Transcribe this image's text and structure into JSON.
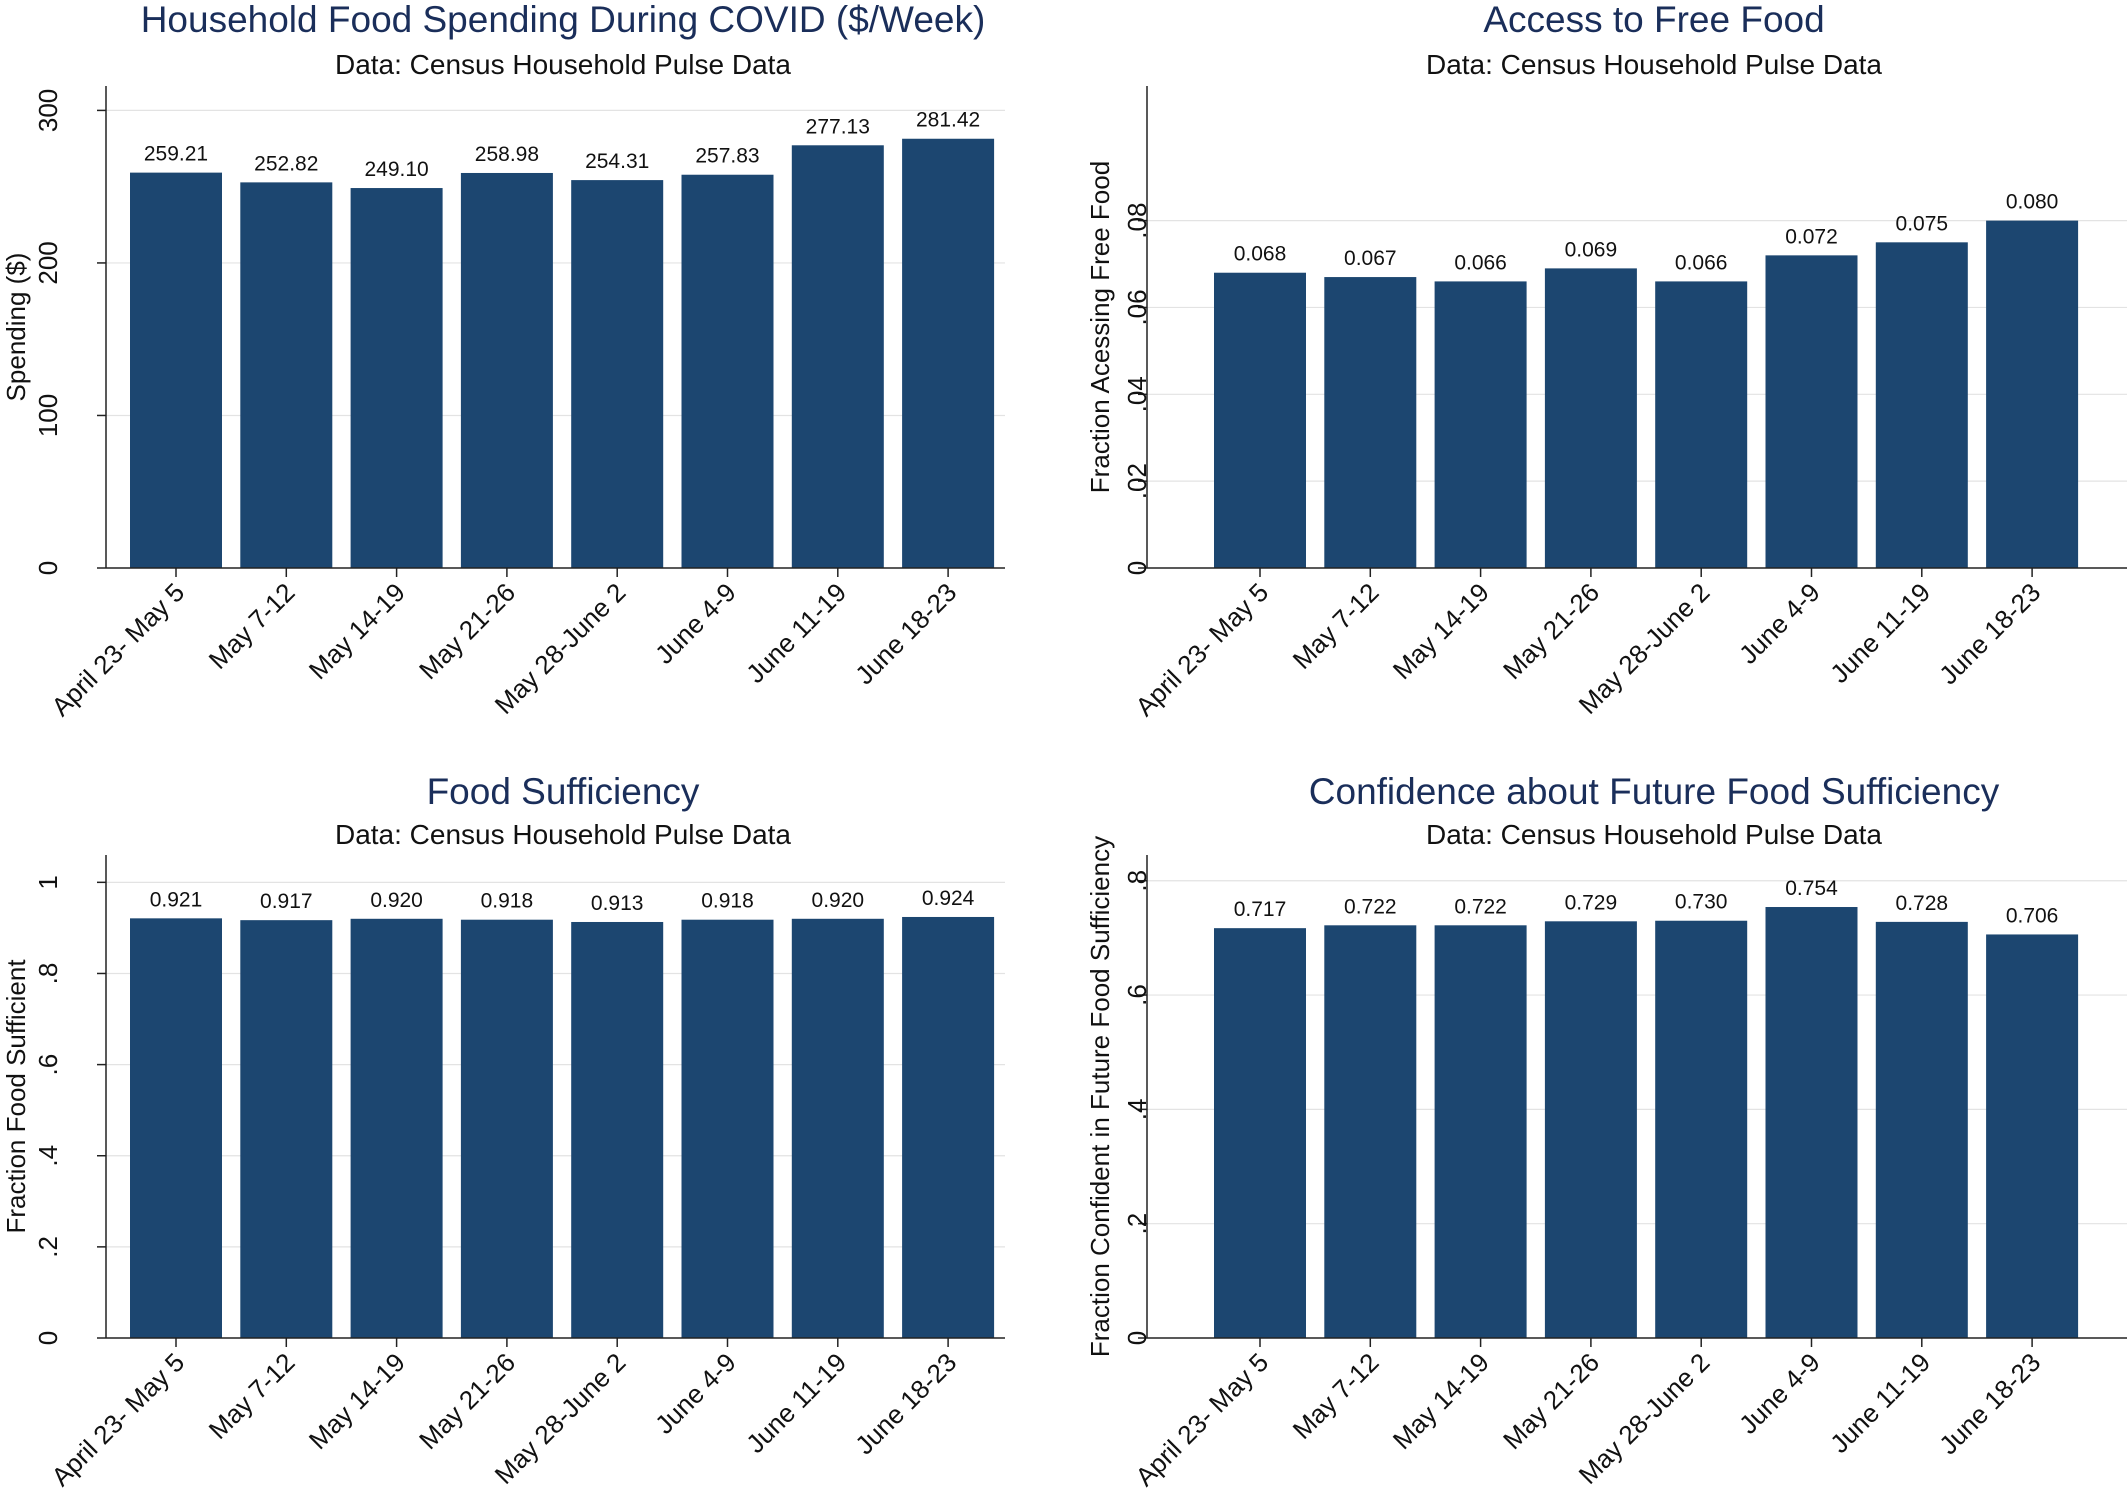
{
  "chart_data": [
    {
      "type": "bar",
      "title": "Household Food Spending During COVID ($/Week)",
      "subtitle": "Data: Census Household Pulse Data",
      "xlabel": "",
      "ylabel": "Spending ($)",
      "categories": [
        "April 23- May 5",
        "May 7-12",
        "May 14-19",
        "May 21-26",
        "May 28-June 2",
        "June 4-9",
        "June 11-19",
        "June 18-23"
      ],
      "values": [
        259.21,
        252.82,
        249.1,
        258.98,
        254.31,
        257.83,
        277.13,
        281.42
      ],
      "data_labels": [
        "259.21",
        "252.82",
        "249.10",
        "258.98",
        "254.31",
        "257.83",
        "277.13",
        "281.42"
      ],
      "yticks": [
        0,
        100,
        200,
        300
      ],
      "ytick_labels": [
        "0",
        "100",
        "200",
        "300"
      ],
      "ylim": [
        0,
        316
      ],
      "grid": true,
      "bar_color": "#1c4670"
    },
    {
      "type": "bar",
      "title": "Access to Free Food",
      "subtitle": "Data: Census Household Pulse Data",
      "xlabel": "",
      "ylabel": "Fraction Acessing Free Food",
      "categories": [
        "April 23- May 5",
        "May 7-12",
        "May 14-19",
        "May 21-26",
        "May 28-June 2",
        "June 4-9",
        "June 11-19",
        "June 18-23"
      ],
      "values": [
        0.068,
        0.067,
        0.066,
        0.069,
        0.066,
        0.072,
        0.075,
        0.08
      ],
      "data_labels": [
        "0.068",
        "0.067",
        "0.066",
        "0.069",
        "0.066",
        "0.072",
        "0.075",
        "0.080"
      ],
      "yticks": [
        0,
        0.02,
        0.04,
        0.06,
        0.08
      ],
      "ytick_labels": [
        "0",
        ".02",
        ".04",
        ".06",
        ".08"
      ],
      "ylim": [
        0,
        0.111
      ],
      "grid": true,
      "bar_color": "#1c4670"
    },
    {
      "type": "bar",
      "title": "Food Sufficiency",
      "subtitle": "Data: Census Household Pulse Data",
      "xlabel": "",
      "ylabel": "Fraction Food Sufficient",
      "categories": [
        "April 23- May 5",
        "May 7-12",
        "May 14-19",
        "May 21-26",
        "May 28-June 2",
        "June 4-9",
        "June 11-19",
        "June 18-23"
      ],
      "values": [
        0.921,
        0.917,
        0.92,
        0.918,
        0.913,
        0.918,
        0.92,
        0.924
      ],
      "data_labels": [
        "0.921",
        "0.917",
        "0.920",
        "0.918",
        "0.913",
        "0.918",
        "0.920",
        "0.924"
      ],
      "yticks": [
        0,
        0.2,
        0.4,
        0.6,
        0.8,
        1
      ],
      "ytick_labels": [
        "0",
        ".2",
        ".4",
        ".6",
        ".8",
        "1"
      ],
      "ylim": [
        0,
        1.06
      ],
      "grid": true,
      "bar_color": "#1c4670"
    },
    {
      "type": "bar",
      "title": "Confidence about Future Food Sufficiency",
      "subtitle": "Data: Census Household Pulse Data",
      "xlabel": "",
      "ylabel": "Fraction Confident in Future Food Sufficiency",
      "categories": [
        "April 23- May 5",
        "May 7-12",
        "May 14-19",
        "May 21-26",
        "May 28-June 2",
        "June 4-9",
        "June 11-19",
        "June 18-23"
      ],
      "values": [
        0.717,
        0.722,
        0.722,
        0.729,
        0.73,
        0.754,
        0.728,
        0.706
      ],
      "data_labels": [
        "0.717",
        "0.722",
        "0.722",
        "0.729",
        "0.730",
        "0.754",
        "0.728",
        "0.706"
      ],
      "yticks": [
        0,
        0.2,
        0.4,
        0.6,
        0.8
      ],
      "ytick_labels": [
        "0",
        ".2",
        ".4",
        ".6",
        ".8"
      ],
      "ylim": [
        0,
        0.845
      ],
      "grid": true,
      "bar_color": "#1c4670"
    }
  ]
}
